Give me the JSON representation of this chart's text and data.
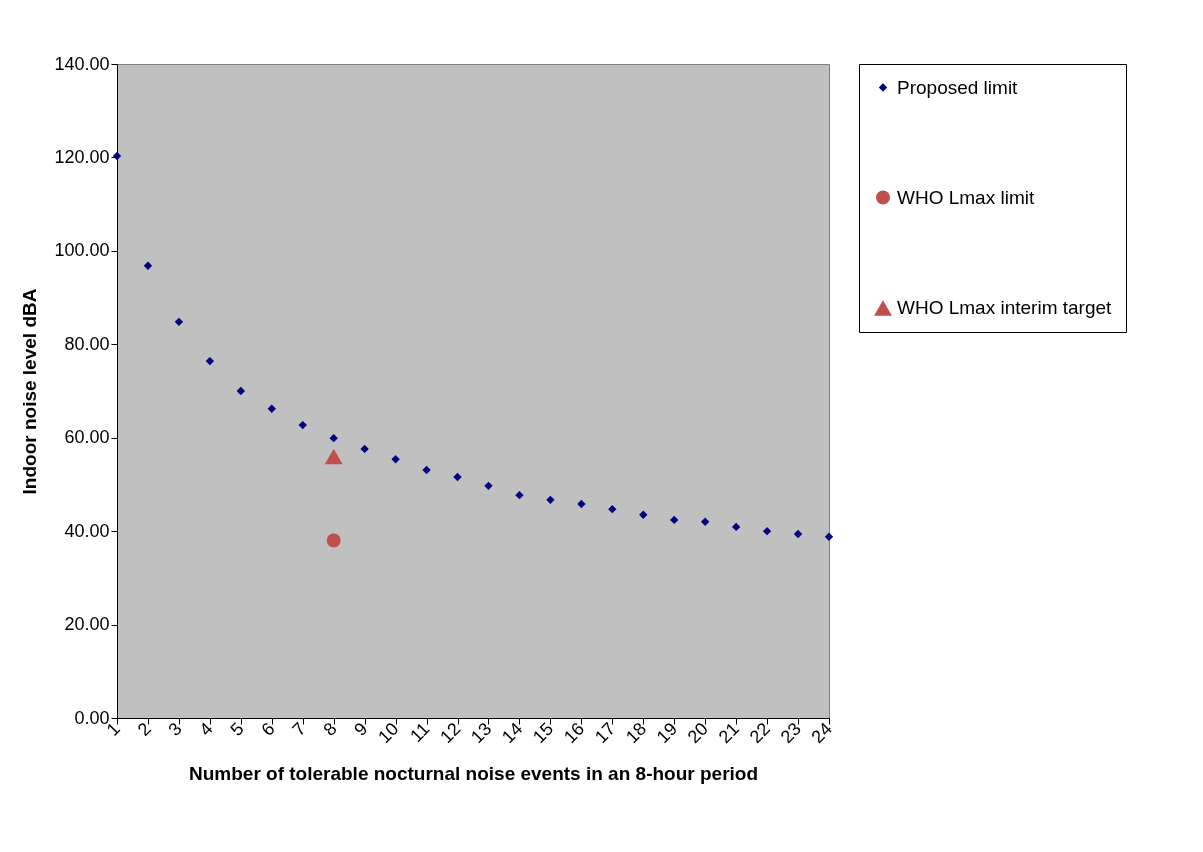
{
  "chart_data": {
    "type": "scatter",
    "xlabel": "Number of tolerable nocturnal noise events in an 8-hour period",
    "ylabel": "Indoor noise level dBA",
    "xlim": [
      1,
      24
    ],
    "xticks": [
      1,
      2,
      3,
      4,
      5,
      6,
      7,
      8,
      9,
      10,
      11,
      12,
      13,
      14,
      15,
      16,
      17,
      18,
      19,
      20,
      21,
      22,
      23,
      24
    ],
    "ylim": [
      0,
      140
    ],
    "yticks": [
      {
        "value": 0,
        "label": "0.00"
      },
      {
        "value": 20,
        "label": "20.00"
      },
      {
        "value": 40,
        "label": "40.00"
      },
      {
        "value": 60,
        "label": "60.00"
      },
      {
        "value": 80,
        "label": "80.00"
      },
      {
        "value": 100,
        "label": "100.00"
      },
      {
        "value": 120,
        "label": "120.00"
      },
      {
        "value": 140,
        "label": "140.00"
      }
    ],
    "grid": false,
    "legend": "right",
    "series": [
      {
        "name": "Proposed limit",
        "color": "#000080",
        "marker": "diamond",
        "x": [
          1,
          2,
          3,
          4,
          5,
          6,
          7,
          8,
          9,
          10,
          11,
          12,
          13,
          14,
          15,
          16,
          17,
          18,
          19,
          20,
          21,
          22,
          23,
          24
        ],
        "values": [
          120.3,
          96.8,
          84.8,
          76.4,
          70.0,
          66.2,
          62.7,
          59.9,
          57.6,
          55.4,
          53.1,
          51.6,
          49.7,
          47.7,
          46.7,
          45.8,
          44.7,
          43.5,
          42.4,
          42.0,
          40.9,
          40.0,
          39.4,
          38.8
        ]
      },
      {
        "name": "WHO Lmax limit",
        "color": "#c0504d",
        "marker": "circle",
        "x": [
          8
        ],
        "values": [
          38
        ]
      },
      {
        "name": "WHO Lmax interim target",
        "color": "#c0504d",
        "marker": "triangle",
        "x": [
          8
        ],
        "values": [
          56
        ]
      }
    ]
  }
}
